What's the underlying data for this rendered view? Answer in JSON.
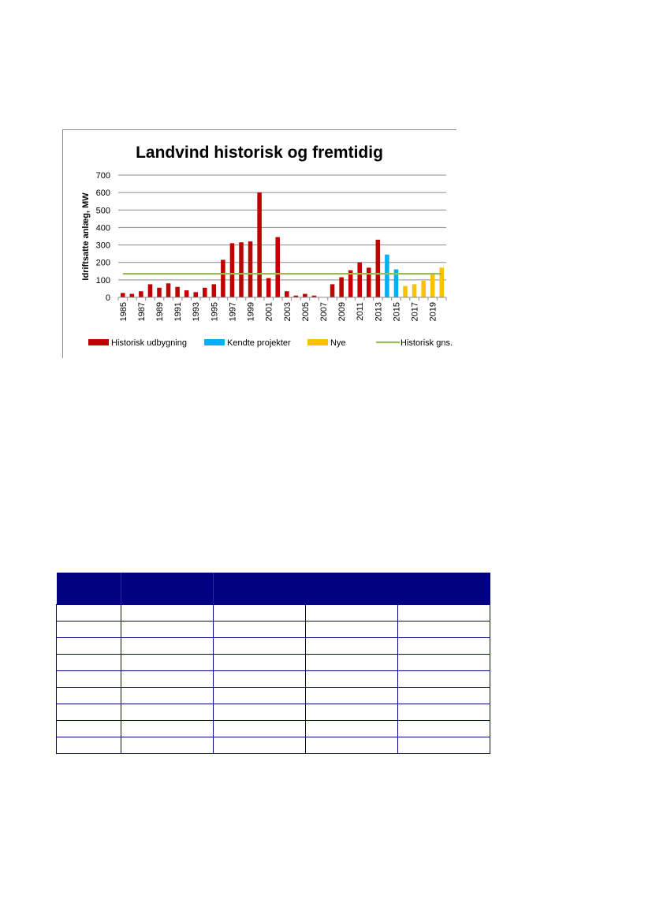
{
  "chart_data": {
    "type": "bar",
    "title": "Landvind historisk og fremtidig",
    "ylabel": "Idriftsatte anlæg, MW",
    "ylim": [
      0,
      700
    ],
    "yticks": [
      0,
      100,
      200,
      300,
      400,
      500,
      600,
      700
    ],
    "grid": true,
    "legend_position": "bottom",
    "categories": [
      "1985",
      "1986",
      "1987",
      "1988",
      "1989",
      "1990",
      "1991",
      "1992",
      "1993",
      "1994",
      "1995",
      "1996",
      "1997",
      "1998",
      "1999",
      "2000",
      "2001",
      "2002",
      "2003",
      "2004",
      "2005",
      "2006",
      "2007",
      "2008",
      "2009",
      "2010",
      "2011",
      "2012",
      "2013",
      "2014",
      "2015",
      "2016",
      "2017",
      "2018",
      "2019",
      "2020"
    ],
    "xtick_labels": [
      "1985",
      "1987",
      "1989",
      "1991",
      "1993",
      "1995",
      "1997",
      "1999",
      "2001",
      "2003",
      "2005",
      "2007",
      "2009",
      "2011",
      "2013",
      "2015",
      "2017",
      "2019"
    ],
    "series": [
      {
        "name": "Historisk udbygning",
        "color": "#c00000",
        "values": [
          25,
          20,
          35,
          75,
          55,
          80,
          60,
          40,
          30,
          55,
          75,
          215,
          310,
          315,
          320,
          600,
          110,
          345,
          35,
          10,
          20,
          10,
          0,
          75,
          115,
          155,
          200,
          170,
          330,
          null,
          null,
          null,
          null,
          null,
          null,
          null
        ]
      },
      {
        "name": "Kendte projekter",
        "color": "#00b0f0",
        "values": [
          null,
          null,
          null,
          null,
          null,
          null,
          null,
          null,
          null,
          null,
          null,
          null,
          null,
          null,
          null,
          null,
          null,
          null,
          null,
          null,
          null,
          null,
          null,
          null,
          null,
          null,
          null,
          null,
          null,
          245,
          160,
          null,
          null,
          null,
          null,
          null
        ]
      },
      {
        "name": "Nye",
        "color": "#ffc000",
        "values": [
          null,
          null,
          null,
          null,
          null,
          null,
          null,
          null,
          null,
          null,
          null,
          null,
          null,
          null,
          null,
          null,
          null,
          null,
          null,
          null,
          null,
          null,
          null,
          null,
          null,
          null,
          null,
          null,
          null,
          null,
          null,
          65,
          75,
          95,
          135,
          170
        ]
      },
      {
        "name": "Historisk gns.",
        "color": "#9bbb59",
        "type": "line",
        "values": [
          135,
          135,
          135,
          135,
          135,
          135,
          135,
          135,
          135,
          135,
          135,
          135,
          135,
          135,
          135,
          135,
          135,
          135,
          135,
          135,
          135,
          135,
          135,
          135,
          135,
          135,
          135,
          135,
          135,
          135,
          135,
          135,
          135,
          135,
          135,
          135
        ]
      }
    ]
  },
  "table": {
    "header_color": "#000080",
    "header_cells": [
      "",
      "",
      "",
      "",
      ""
    ],
    "rows": [
      [
        "",
        "",
        "",
        "",
        ""
      ],
      [
        "",
        "",
        "",
        "",
        ""
      ],
      [
        "",
        "",
        "",
        "",
        ""
      ],
      [
        "",
        "",
        "",
        "",
        ""
      ],
      [
        "",
        "",
        "",
        "",
        ""
      ],
      [
        "",
        "",
        "",
        "",
        ""
      ],
      [
        "",
        "",
        "",
        "",
        ""
      ],
      [
        "",
        "",
        "",
        "",
        ""
      ],
      [
        "",
        "",
        "",
        "",
        ""
      ]
    ]
  }
}
